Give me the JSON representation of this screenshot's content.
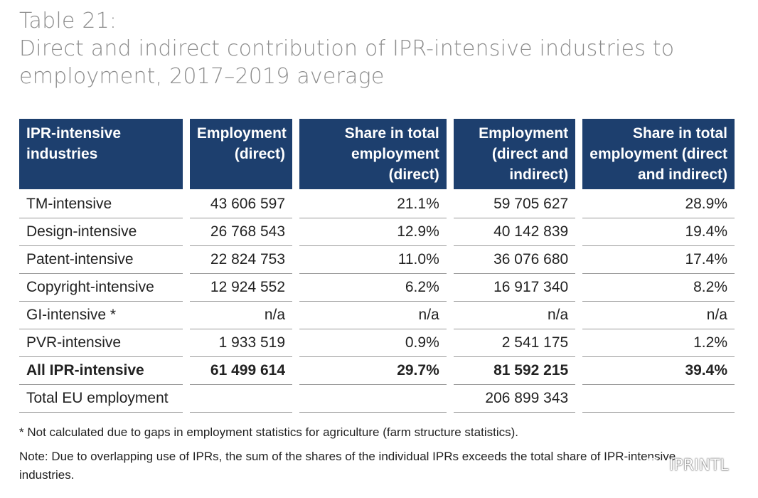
{
  "title": {
    "line1": "Table 21:",
    "line2": "Direct and indirect contribution of IPR-intensive industries to",
    "line3": "employment, 2017–2019 average"
  },
  "table": {
    "headers": [
      "IPR-intensive industries",
      "Employment (direct)",
      "Share in total employment (direct)",
      "Employment (direct and indirect)",
      "Share in total employment (direct and indirect)"
    ],
    "rows": [
      [
        "TM-intensive",
        "43 606 597",
        "21.1%",
        "59 705 627",
        "28.9%"
      ],
      [
        "Design-intensive",
        "26 768 543",
        "12.9%",
        "40 142 839",
        "19.4%"
      ],
      [
        "Patent-intensive",
        "22 824 753",
        "11.0%",
        "36 076 680",
        "17.4%"
      ],
      [
        "Copyright-intensive",
        "12 924 552",
        "6.2%",
        "16 917 340",
        "8.2%"
      ],
      [
        "GI-intensive *",
        "n/a",
        "n/a",
        "n/a",
        "n/a"
      ],
      [
        "PVR-intensive",
        "1 933 519",
        "0.9%",
        "2 541 175",
        "1.2%"
      ],
      [
        "All IPR-intensive",
        "61 499 614",
        "29.7%",
        "81 592 215",
        "39.4%"
      ],
      [
        "Total EU employment",
        "",
        "",
        "206 899 343",
        ""
      ]
    ]
  },
  "footnotes": {
    "asterisk": "* Not calculated due to gaps in employment statistics for agriculture (farm structure statistics).",
    "note": "Note: Due to overlapping use of IPRs, the sum of the shares of the individual IPRs exceeds the total share of IPR-intensive industries."
  },
  "watermark": {
    "icon": "chat-bubbles-icon",
    "text": "IPRINTL"
  }
}
